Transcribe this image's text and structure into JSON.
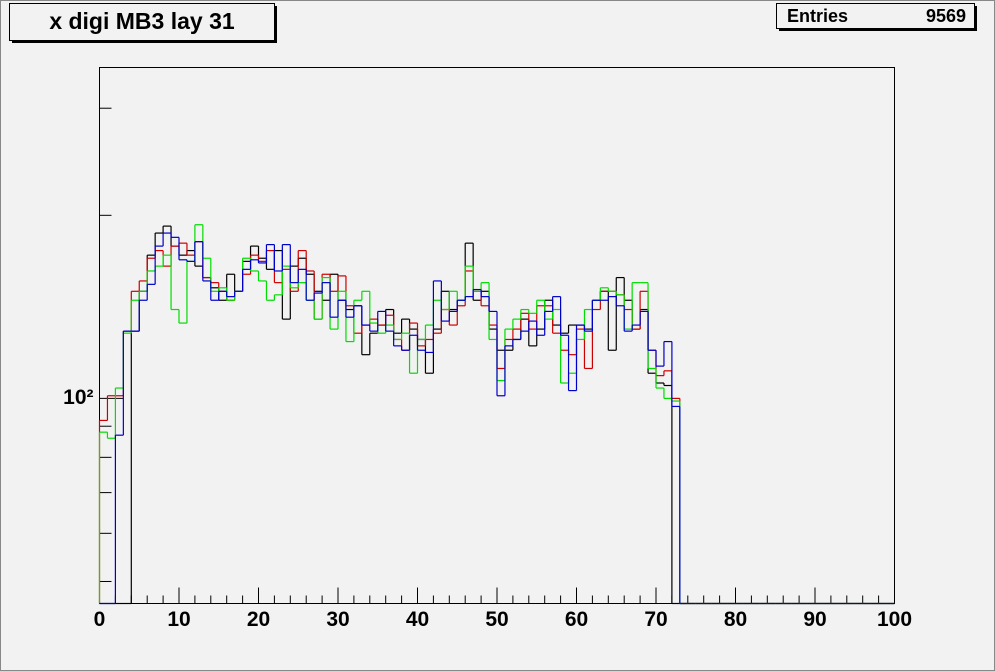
{
  "chart_data": {
    "type": "histogram",
    "title": "x digi MB3 lay 31",
    "stats": {
      "label": "Entries",
      "value": 9569
    },
    "log_y": true,
    "bins": [
      0,
      1,
      2,
      3,
      4,
      5,
      6,
      7,
      8,
      9,
      10,
      11,
      12,
      13,
      14,
      15,
      16,
      17,
      18,
      19,
      20,
      21,
      22,
      23,
      24,
      25,
      26,
      27,
      28,
      29,
      30,
      31,
      32,
      33,
      34,
      35,
      36,
      37,
      38,
      39,
      40,
      41,
      42,
      43,
      44,
      45,
      46,
      47,
      48,
      49,
      50,
      51,
      52,
      53,
      54,
      55,
      56,
      57,
      58,
      59,
      60,
      61,
      62,
      63,
      64,
      65,
      66,
      67,
      68,
      69,
      70,
      71,
      72,
      73,
      74,
      75,
      76,
      77,
      78,
      79,
      80,
      81,
      82,
      83,
      84,
      85,
      86,
      87,
      88,
      89,
      90,
      91,
      92,
      93,
      94,
      95,
      96,
      97,
      98,
      99,
      100
    ],
    "series": [
      {
        "color": "#000000",
        "values": [
          0,
          0,
          0,
          0,
          129,
          150,
          172,
          187,
          192,
          178,
          172,
          175,
          165,
          158,
          152,
          145,
          160,
          150,
          168,
          178,
          170,
          163,
          175,
          135,
          165,
          170,
          160,
          150,
          145,
          160,
          145,
          140,
          142,
          118,
          128,
          132,
          140,
          128,
          135,
          130,
          125,
          110,
          130,
          150,
          140,
          145,
          180,
          145,
          150,
          130,
          120,
          120,
          125,
          135,
          122,
          130,
          145,
          132,
          128,
          132,
          132,
          130,
          145,
          150,
          120,
          158,
          145,
          130,
          140,
          110,
          106,
          105,
          0,
          0,
          0,
          0,
          0,
          0,
          0,
          0,
          0,
          0,
          0,
          0,
          0,
          0,
          0,
          0,
          0,
          0,
          0,
          0,
          0,
          0,
          0,
          0,
          0,
          0,
          0,
          0
        ]
      },
      {
        "color": "#cc0000",
        "values": [
          92,
          101,
          101,
          129,
          150,
          156,
          170,
          175,
          165,
          178,
          180,
          172,
          181,
          158,
          155,
          150,
          145,
          150,
          160,
          172,
          168,
          175,
          155,
          163,
          150,
          175,
          162,
          135,
          160,
          150,
          159,
          142,
          128,
          132,
          135,
          132,
          137,
          125,
          120,
          133,
          122,
          125,
          128,
          140,
          132,
          142,
          162,
          150,
          142,
          132,
          112,
          125,
          130,
          138,
          130,
          142,
          142,
          128,
          120,
          118,
          130,
          112,
          140,
          150,
          150,
          148,
          140,
          130,
          150,
          120,
          109,
          111,
          100,
          0,
          0,
          0,
          0,
          0,
          0,
          0,
          0,
          0,
          0,
          0,
          0,
          0,
          0,
          0,
          0,
          0,
          0,
          0,
          0,
          0,
          0,
          0,
          0,
          0,
          0,
          0
        ]
      },
      {
        "color": "#00dd00",
        "values": [
          88,
          86,
          104,
          128,
          145,
          150,
          162,
          165,
          172,
          140,
          133,
          168,
          193,
          170,
          150,
          152,
          145,
          150,
          170,
          162,
          156,
          145,
          148,
          165,
          152,
          155,
          145,
          135,
          158,
          130,
          150,
          124,
          145,
          150,
          133,
          128,
          132,
          125,
          128,
          110,
          125,
          132,
          145,
          140,
          150,
          145,
          165,
          150,
          155,
          125,
          107,
          130,
          135,
          140,
          138,
          145,
          135,
          140,
          106,
          110,
          125,
          140,
          145,
          152,
          150,
          148,
          130,
          155,
          155,
          112,
          104,
          100,
          99,
          0,
          0,
          0,
          0,
          0,
          0,
          0,
          0,
          0,
          0,
          0,
          0,
          0,
          0,
          0,
          0,
          0,
          0,
          0,
          0,
          0,
          0,
          0,
          0,
          0,
          0,
          0
        ]
      },
      {
        "color": "#0000cc",
        "values": [
          0,
          0,
          87,
          129,
          129,
          145,
          154,
          178,
          187,
          184,
          169,
          168,
          181,
          156,
          145,
          150,
          147,
          150,
          163,
          169,
          167,
          179,
          162,
          179,
          155,
          163,
          145,
          149,
          155,
          136,
          145,
          136,
          142,
          132,
          129,
          139,
          129,
          122,
          120,
          127,
          120,
          119,
          156,
          134,
          139,
          145,
          147,
          151,
          147,
          139,
          101,
          122,
          125,
          129,
          134,
          127,
          139,
          147,
          127,
          103,
          132,
          129,
          145,
          145,
          147,
          142,
          129,
          132,
          139,
          120,
          113,
          124,
          97,
          0,
          0,
          0,
          0,
          0,
          0,
          0,
          0,
          0,
          0,
          0,
          0,
          0,
          0,
          0,
          0,
          0,
          0,
          0,
          0,
          0,
          0,
          0,
          0,
          0,
          0,
          0
        ]
      }
    ],
    "xlim": [
      0,
      100
    ],
    "xticks": [
      0,
      10,
      20,
      30,
      40,
      50,
      60,
      70,
      80,
      90,
      100
    ],
    "xminorticks": [
      2,
      4,
      6,
      8,
      12,
      14,
      16,
      18,
      22,
      24,
      26,
      28,
      32,
      34,
      36,
      38,
      42,
      44,
      46,
      48,
      52,
      54,
      56,
      58,
      62,
      64,
      66,
      68,
      72,
      74,
      76,
      78,
      82,
      84,
      86,
      88,
      92,
      94,
      96,
      98
    ],
    "ylim": [
      46,
      350
    ],
    "yticks": [
      {
        "value": 100,
        "label": "10²"
      }
    ],
    "yminorticks": [
      50,
      60,
      70,
      80,
      90,
      200,
      300
    ]
  }
}
